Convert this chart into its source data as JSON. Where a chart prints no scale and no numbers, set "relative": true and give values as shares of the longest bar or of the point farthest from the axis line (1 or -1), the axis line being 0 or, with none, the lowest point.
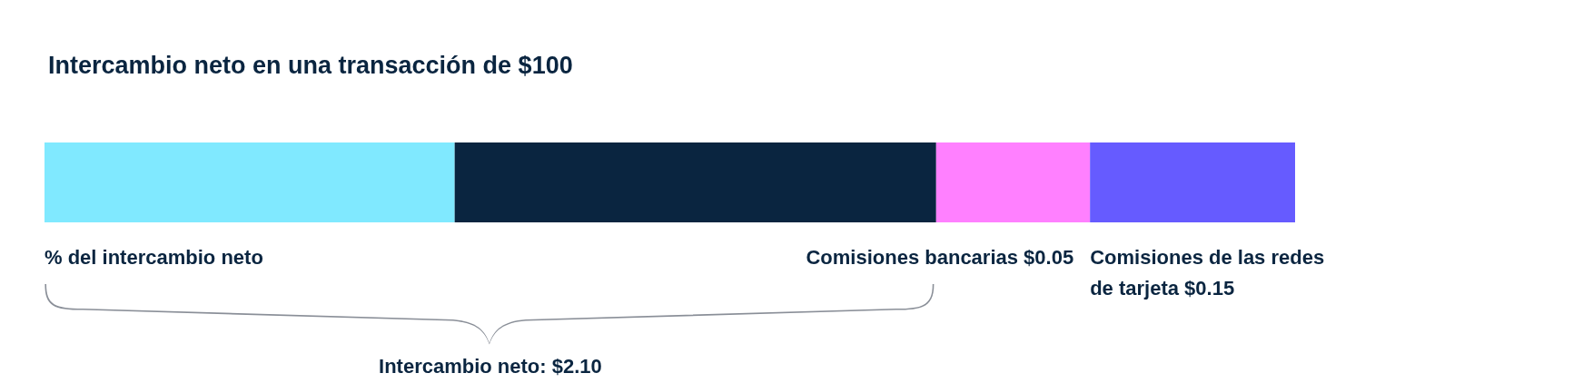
{
  "chart_data": {
    "type": "bar",
    "orientation": "horizontal",
    "stacked": true,
    "relative": true,
    "title": "Intercambio neto en una transacción de $100",
    "categories": [
      null
    ],
    "series": [
      {
        "color": "#80e9ff",
        "values": [
          0.328
        ]
      },
      {
        "color": "#0a2540",
        "values": [
          0.385
        ]
      },
      {
        "color": "#ff80ff",
        "values": [
          0.123
        ]
      },
      {
        "color": "#665bff",
        "values": [
          0.164
        ]
      }
    ],
    "annotations": [
      "% del intercambio neto",
      "Comisiones bancarias $0.05",
      "Comisiones de las redes de tarjeta $0.15",
      "Intercambio neto: $2.10"
    ]
  }
}
